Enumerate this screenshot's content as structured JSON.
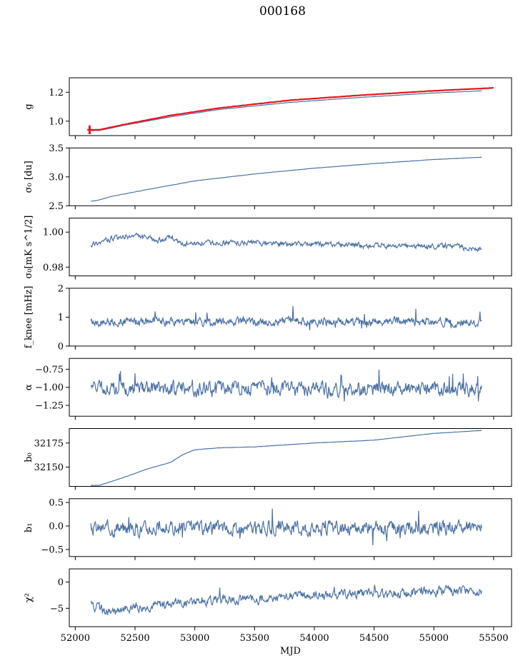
{
  "title": "000168",
  "chart_data": {
    "type": "line",
    "shared_x": {
      "label": "MJD",
      "lim": [
        51950,
        55650
      ],
      "ticks": [
        52000,
        52500,
        53000,
        53500,
        54000,
        54500,
        55000,
        55500
      ],
      "tick_labels": [
        "52000",
        "52500",
        "53000",
        "53500",
        "54000",
        "54500",
        "55000",
        "55500"
      ]
    },
    "colors": {
      "series": "#4c72a4",
      "highlight": "#e8141c"
    },
    "panels": [
      {
        "ylabel": "g",
        "ylim": [
          0.9,
          1.3
        ],
        "yticks": [
          1.0,
          1.2
        ],
        "ytick_labels": [
          "1.0",
          "1.2"
        ],
        "series": [
          {
            "color": "#4c72a4",
            "x": [
              52130,
              52200,
              52400,
              52800,
              53200,
              53800,
              54400,
              55000,
              55400
            ],
            "y": [
              0.935,
              0.935,
              0.97,
              1.03,
              1.08,
              1.13,
              1.165,
              1.195,
              1.21
            ]
          },
          {
            "color": "#e8141c",
            "x": [
              52100,
              52200,
              52400,
              52800,
              53200,
              53800,
              54400,
              55000,
              55500
            ],
            "y": [
              0.94,
              0.94,
              0.975,
              1.04,
              1.09,
              1.145,
              1.18,
              1.21,
              1.23
            ],
            "thick": true
          }
        ],
        "errorbar": {
          "x": 52120,
          "ymin": 0.91,
          "ymax": 0.97,
          "color": "#e8141c"
        }
      },
      {
        "ylabel": "σ₀ [du]",
        "ylim": [
          2.5,
          3.5
        ],
        "yticks": [
          2.5,
          3.0,
          3.5
        ],
        "ytick_labels": [
          "2.5",
          "3.0",
          "3.5"
        ],
        "series": [
          {
            "color": "#4c72a4",
            "x": [
              52130,
              52180,
              52300,
              52600,
              53000,
              53500,
              54000,
              54500,
              55000,
              55400
            ],
            "y": [
              2.58,
              2.59,
              2.66,
              2.78,
              2.93,
              3.05,
              3.15,
              3.23,
              3.3,
              3.34
            ]
          }
        ]
      },
      {
        "ylabel": "σ₀[mK s^1/2]",
        "ylim": [
          0.975,
          1.008
        ],
        "yticks": [
          0.98,
          1.0
        ],
        "ytick_labels": [
          "0.98",
          "1.00"
        ],
        "series": [
          {
            "color": "#4c72a4",
            "x": [
              52130,
              52300,
              52500,
              52700,
              52800,
              52900,
              53200,
              53500,
              53800,
              54200,
              54500,
              54800,
              55100,
              55300,
              55400
            ],
            "y": [
              0.993,
              0.996,
              0.998,
              0.995,
              0.997,
              0.993,
              0.994,
              0.994,
              0.993,
              0.993,
              0.992,
              0.992,
              0.992,
              0.991,
              0.99
            ],
            "noise": 0.0012
          }
        ]
      },
      {
        "ylabel": "f_knee [mHz]",
        "ylim": [
          0,
          2
        ],
        "yticks": [
          0,
          1,
          2
        ],
        "ytick_labels": [
          "0",
          "1",
          "2"
        ],
        "series": [
          {
            "color": "#4c72a4",
            "x": [
              52130,
              55400
            ],
            "y": [
              0.85,
              0.83
            ],
            "noise": 0.12,
            "spikes": 0.45
          }
        ]
      },
      {
        "ylabel": "α",
        "ylim": [
          -1.4,
          -0.6
        ],
        "yticks": [
          -1.25,
          -1.0,
          -0.75
        ],
        "ytick_labels": [
          "−1.25",
          "−1.00",
          "−0.75"
        ],
        "series": [
          {
            "color": "#4c72a4",
            "x": [
              52130,
              55400
            ],
            "y": [
              -1.02,
              -1.02
            ],
            "noise": 0.08,
            "spikes": 0.2
          }
        ]
      },
      {
        "ylabel": "b₀",
        "ylim": [
          32130,
          32190
        ],
        "yticks": [
          32150,
          32175
        ],
        "ytick_labels": [
          "32150",
          "32175"
        ],
        "series": [
          {
            "color": "#4c72a4",
            "x": [
              52130,
              52200,
              52400,
              52600,
              52800,
              52900,
              53000,
              53200,
              53500,
              54000,
              54500,
              55000,
              55400
            ],
            "y": [
              32131,
              32131,
              32139,
              32148,
              32155,
              32163,
              32168,
              32170,
              32171,
              32175,
              32178,
              32185,
              32188
            ]
          }
        ]
      },
      {
        "ylabel": "b₁",
        "ylim": [
          -0.65,
          0.58
        ],
        "yticks": [
          -0.5,
          0.0,
          0.5
        ],
        "ytick_labels": [
          "−0.5",
          "0.0",
          "0.5"
        ],
        "series": [
          {
            "color": "#4c72a4",
            "x": [
              52130,
              55400
            ],
            "y": [
              -0.05,
              -0.05
            ],
            "noise": 0.12,
            "spikes": 0.35
          }
        ]
      },
      {
        "ylabel": "χ²",
        "ylim": [
          -8.5,
          2.5
        ],
        "yticks": [
          -5,
          0
        ],
        "ytick_labels": [
          "−5",
          "0"
        ],
        "series": [
          {
            "color": "#4c72a4",
            "x": [
              52130,
              52300,
              52500,
              52800,
              53200,
              53600,
              54000,
              54500,
              55000,
              55400
            ],
            "y": [
              -4.5,
              -6.0,
              -5.0,
              -4.0,
              -3.5,
              -3.0,
              -2.5,
              -2.2,
              -1.8,
              -1.7
            ],
            "noise": 0.7,
            "spikes": 1.2
          }
        ]
      }
    ]
  }
}
